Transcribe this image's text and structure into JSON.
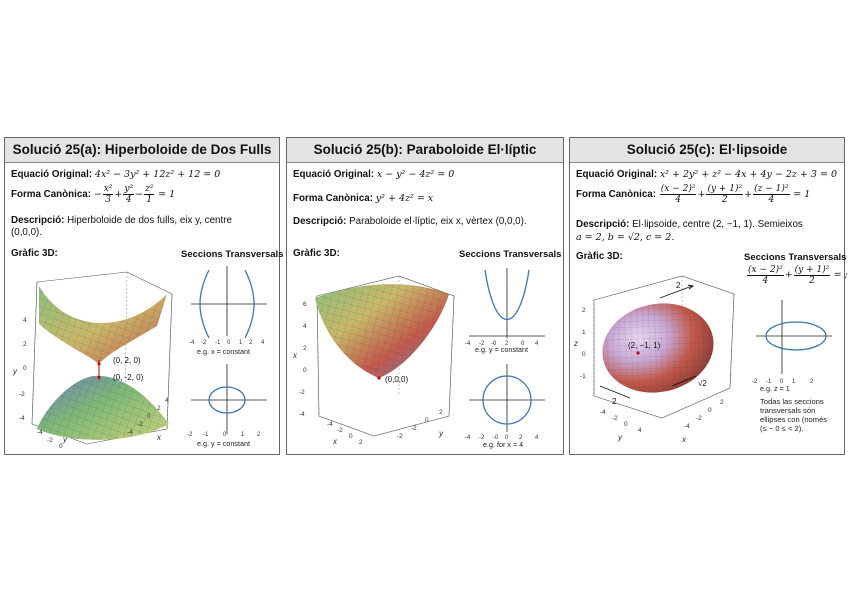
{
  "panels": [
    {
      "title": "Solució 25(a): Hiperboloide de Dos Fulls",
      "orig_label": "Equació Original:",
      "orig_eq": "4x² − 3y² + 12z² + 12 = 0",
      "canon_label": "Forma Canònica:",
      "canon_sign": "−",
      "canon_f1_num": "x²",
      "canon_f1_den": "3",
      "canon_f2_num": "y²",
      "canon_f2_den": "4",
      "canon_f3_num": "z²",
      "canon_f3_den": "1",
      "canon_rhs": "= 1",
      "desc_label": "Descripció:",
      "desc_line1": "Hiperboloide de dos fulls, eix y, centre",
      "desc_line2": "(0,0,0).",
      "graph_label": "Gràfic 3D:",
      "sections_label": "Seccions Transversals",
      "point_label_1": "(0, 2, 0)",
      "point_label_2": "(0, -2, 0)",
      "caption_top": "e.g. x = constant",
      "caption_bottom": "e.g. y = constant",
      "axis_name_y": "y",
      "axis_name_x": "x"
    },
    {
      "title": "Solució 25(b): Paraboloide El·líptic",
      "orig_label": "Equació Original:",
      "orig_eq": "x − y² − 4z² = 0",
      "canon_label": "Forma Canònica:",
      "canon_eq": "y² + 4z² = x",
      "desc_label": "Descripció:",
      "desc_line1": "Paraboloide el·líptic, eix x, vèrtex (0,0,0).",
      "graph_label": "Gràfic 3D:",
      "sections_label": "Seccions Transversals",
      "point_label_1": "(0,0,0)",
      "caption_top": "e.g. y = constant",
      "caption_bottom": "e.g. for x = 4",
      "axis_name_x": "x",
      "axis_name_y": "y"
    },
    {
      "title": "Solució 25(c): El·lipsoide",
      "orig_label": "Equació Original:",
      "orig_eq": "x² + 2y² + z² − 4x + 4y − 2z + 3 = 0",
      "canon_label": "Forma Canònica:",
      "canon_f1_num": "(x − 2)²",
      "canon_f1_den": "4",
      "canon_f2_num": "(y + 1)²",
      "canon_f2_den": "2",
      "canon_f3_num": "(z − 1)²",
      "canon_f3_den": "4",
      "canon_rhs": "= 1",
      "desc_label": "Descripció:",
      "desc_line1": "El·lipsoide, centre (2, −1, 1). Semieixos",
      "desc_line2": "a = 2, b = √2, c = 2.",
      "graph_label": "Gràfic 3D:",
      "sections_label": "Seccions Transversals",
      "sec_f1_num": "(x − 2)²",
      "sec_f1_den": "4",
      "sec_f2_num": "(y + 1)²",
      "sec_f2_den": "2",
      "sec_rhs": "= ;",
      "point_label_1": "(2, −1, 1)",
      "dim_label_1": "2",
      "dim_label_2": "2",
      "dim_label_3": "√2",
      "caption_top": "e.g. z = 1",
      "note_lines": [
        "Todas las seccions",
        "transversals són",
        "ellipses con (només",
        "(≤ − 0 ≤ < 2)."
      ],
      "axis_name_z": "z",
      "axis_name_y": "y",
      "axis_name_x": "x"
    }
  ],
  "colors": {
    "curve": "#3a78b5",
    "title_bg": "#e4e4e4",
    "surface_green": "#7fb878",
    "surface_red": "#c25a4c",
    "surface_blue": "#6b7fb8"
  }
}
